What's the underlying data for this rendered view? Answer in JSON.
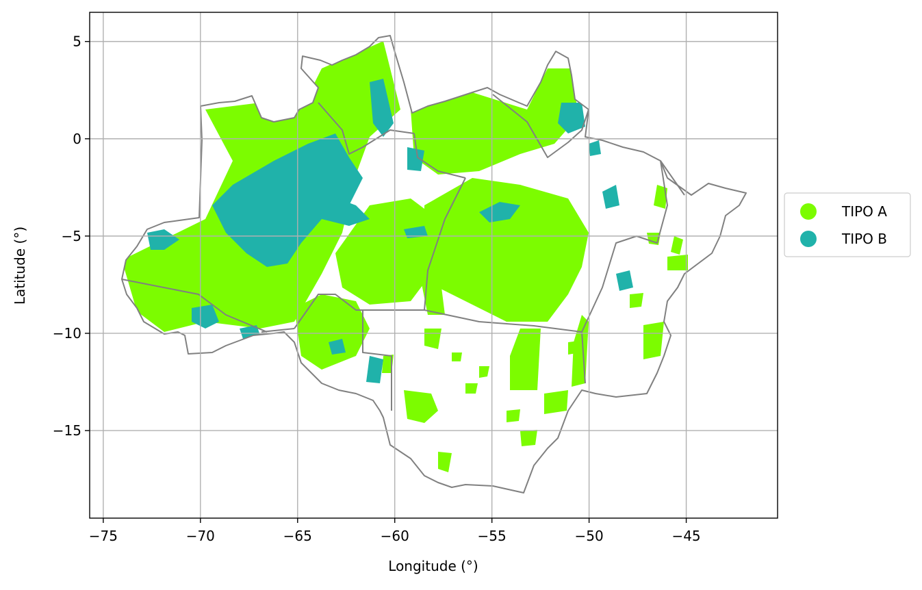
{
  "chart_data": {
    "type": "map",
    "xlabel": "Longitude (°)",
    "ylabel": "Latitude (°)",
    "xlim": [
      -75.7,
      -40.3
    ],
    "ylim": [
      -19.5,
      6.5
    ],
    "xticks": [
      -75,
      -70,
      -65,
      -60,
      -55,
      -50,
      -45
    ],
    "yticks": [
      5,
      0,
      -5,
      -10,
      -15
    ],
    "xtick_labels": [
      "−75",
      "−70",
      "−65",
      "−60",
      "−55",
      "−50",
      "−45"
    ],
    "ytick_labels": [
      "5",
      "0",
      "−5",
      "−10",
      "−15"
    ],
    "grid": true,
    "legend_position": "right",
    "legend": [
      {
        "label": "TIPO A",
        "color": "#7cfc00"
      },
      {
        "label": "TIPO B",
        "color": "#20b2aa"
      }
    ],
    "boundary_color": "#808080"
  }
}
